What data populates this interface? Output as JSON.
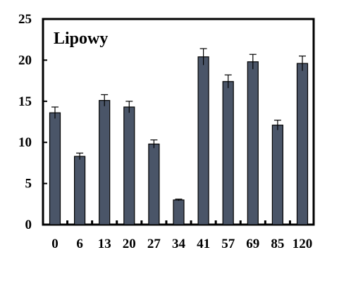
{
  "chart_data": {
    "type": "bar",
    "title": "Lipowy",
    "xlabel": "",
    "ylabel": "",
    "categories": [
      "0",
      "6",
      "13",
      "20",
      "27",
      "34",
      "41",
      "57",
      "69",
      "85",
      "120"
    ],
    "values": [
      13.6,
      8.3,
      15.1,
      14.3,
      9.8,
      3.0,
      20.4,
      17.4,
      19.8,
      12.1,
      19.6
    ],
    "errors": [
      0.7,
      0.4,
      0.7,
      0.7,
      0.5,
      0.1,
      1.0,
      0.8,
      0.9,
      0.6,
      0.9
    ],
    "ylim": [
      0,
      25
    ],
    "yticks": [
      "0",
      "5",
      "10",
      "15",
      "20",
      "25"
    ],
    "grid": false,
    "legend": "none",
    "colors": {
      "bar": "#4a5568",
      "outline": "#000000"
    }
  }
}
